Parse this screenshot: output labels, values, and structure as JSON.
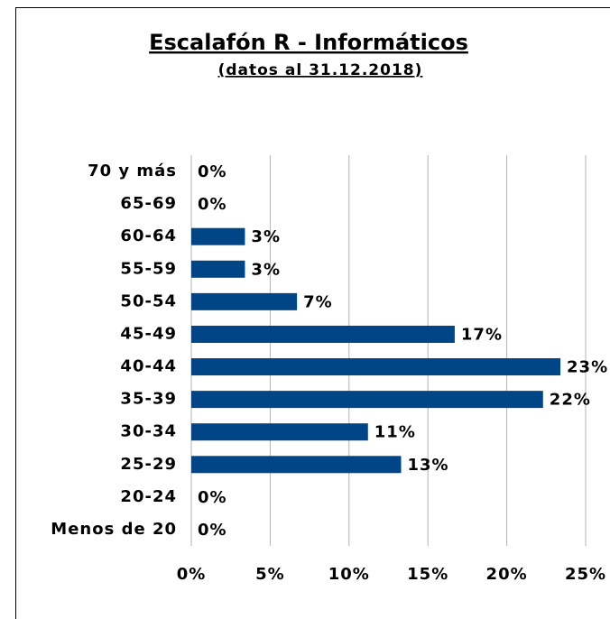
{
  "chart_data": {
    "type": "bar",
    "orientation": "horizontal",
    "title": "Escalafón R - Informáticos",
    "subtitle": "(datos al 31.12.2018)",
    "categories": [
      "70 y más",
      "65-69",
      "60-64",
      "55-59",
      "50-54",
      "45-49",
      "40-44",
      "35-39",
      "30-34",
      "25-29",
      "20-24",
      "Menos de 20"
    ],
    "values": [
      0,
      0,
      3.4,
      3.4,
      6.7,
      16.7,
      23.4,
      22.3,
      11.2,
      13.3,
      0,
      0
    ],
    "value_labels": [
      "0%",
      "0%",
      "3%",
      "3%",
      "7%",
      "17%",
      "23%",
      "22%",
      "11%",
      "13%",
      "0%",
      "0%"
    ],
    "color": "#004586",
    "xlim": [
      0,
      25
    ],
    "xticks": [
      {
        "value": 0,
        "label": "0%"
      },
      {
        "value": 5,
        "label": "5%"
      },
      {
        "value": 10,
        "label": "10%"
      },
      {
        "value": 15,
        "label": "15%"
      },
      {
        "value": 20,
        "label": "20%"
      },
      {
        "value": 25,
        "label": "25%"
      }
    ],
    "grid": true
  }
}
